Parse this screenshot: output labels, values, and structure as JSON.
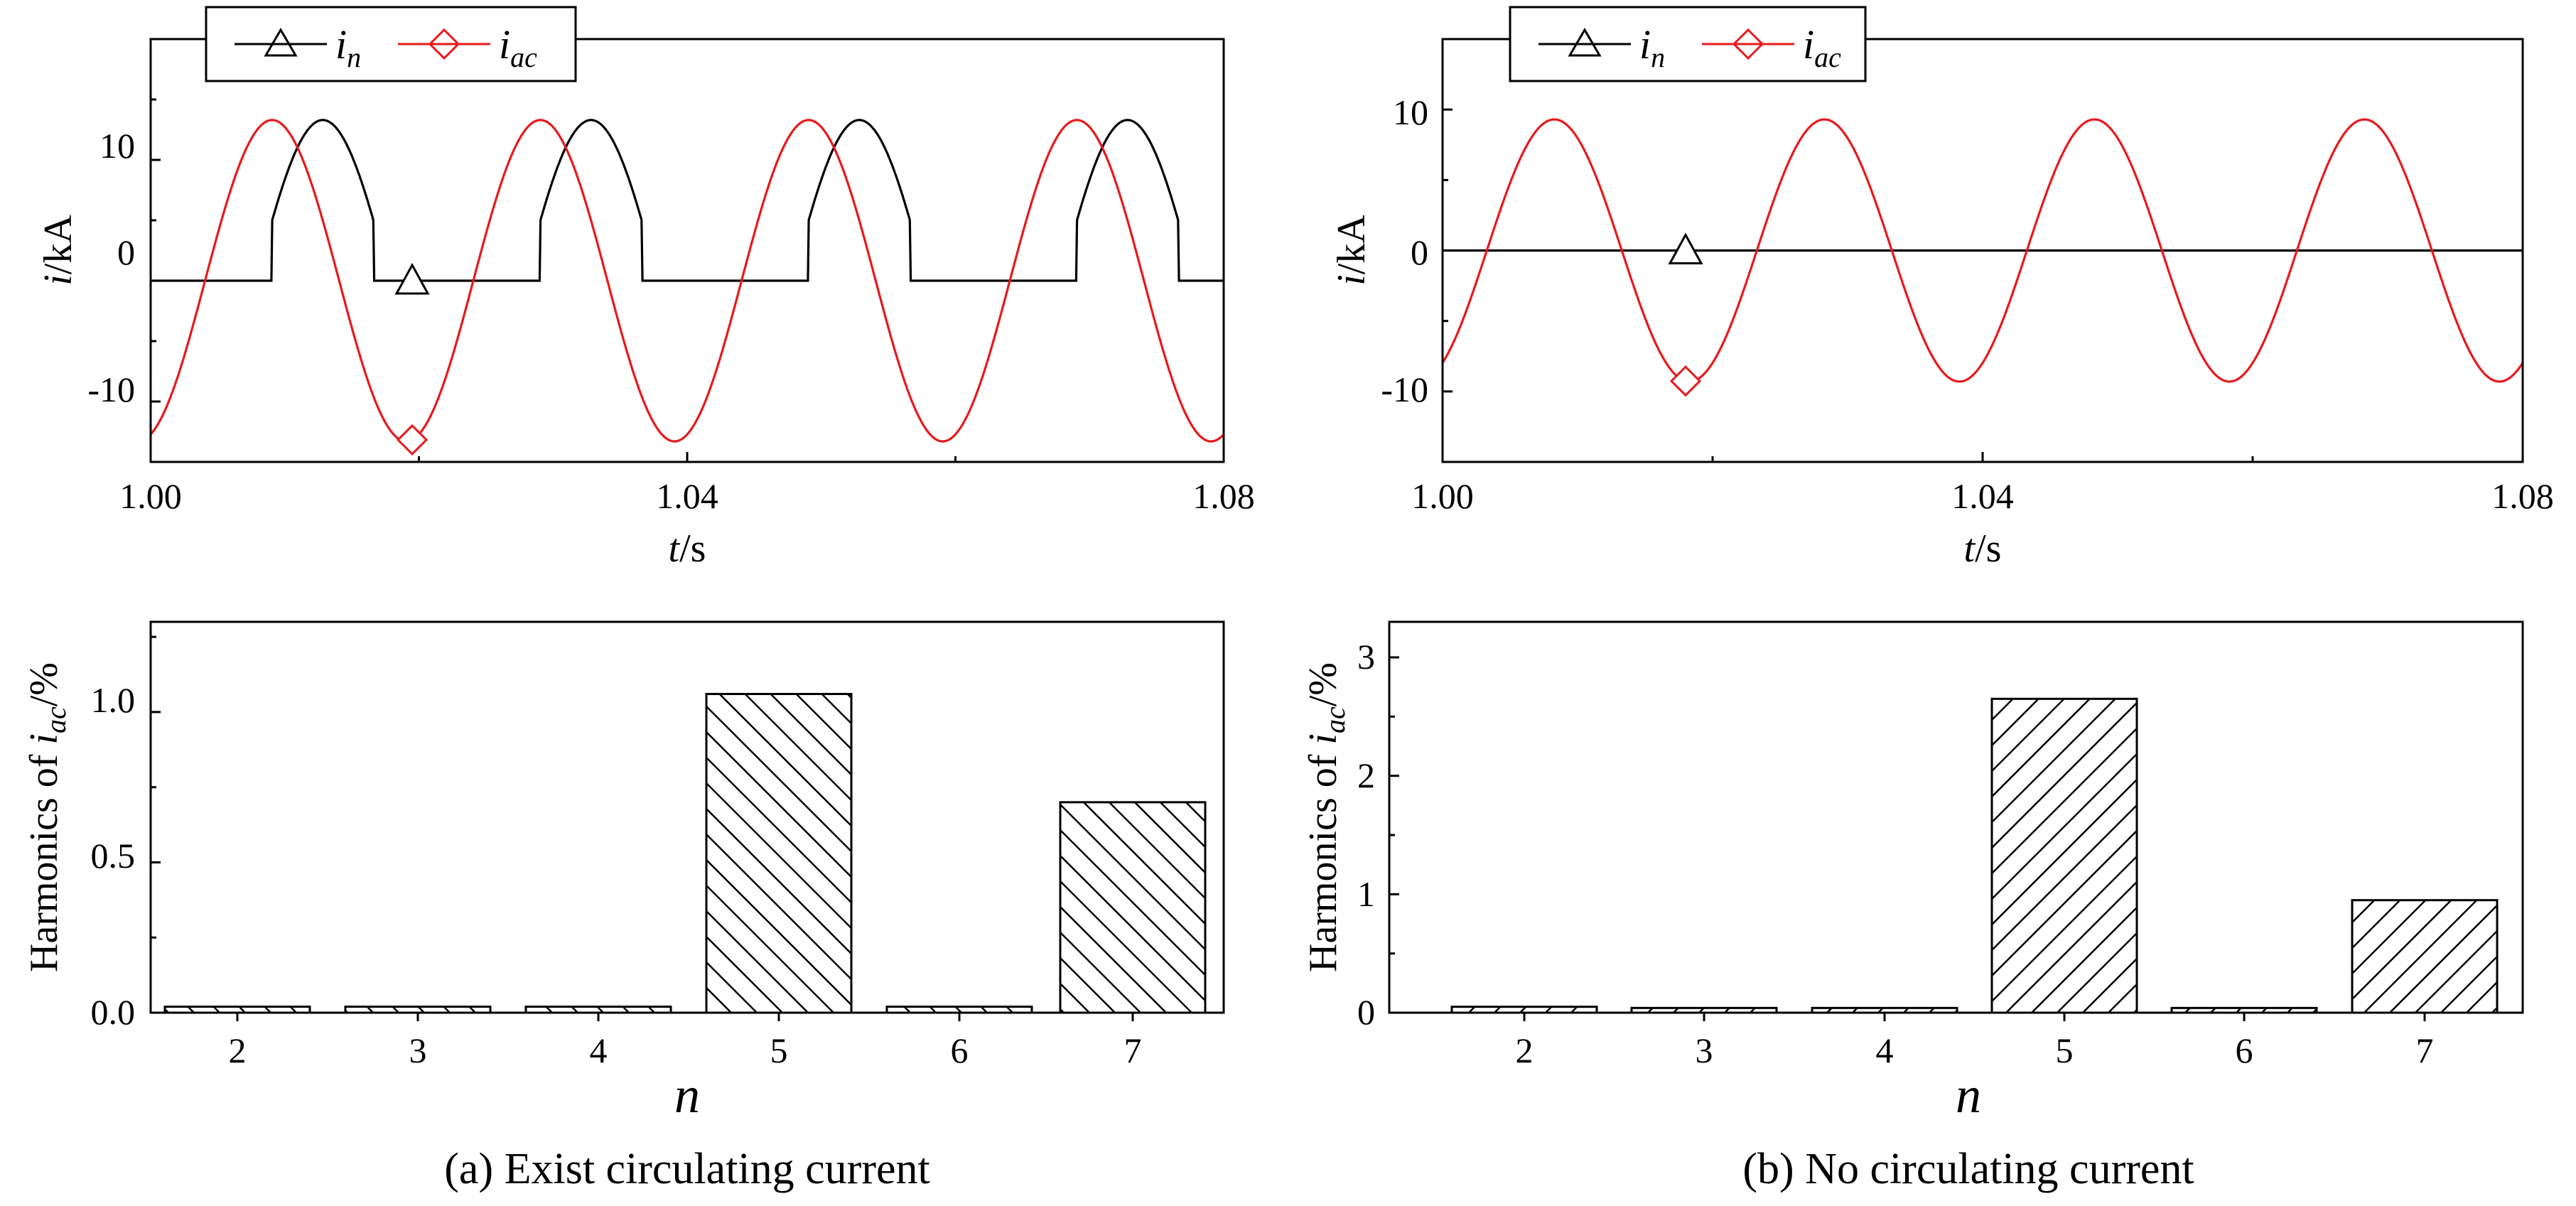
{
  "colors": {
    "in": "#000000",
    "iac": "#e8191c",
    "axis": "#000000",
    "background": "#ffffff"
  },
  "chart_data": [
    {
      "id": "a-time",
      "type": "line",
      "panel": "a",
      "xlabel": {
        "italic": "t",
        "rest": "/s"
      },
      "ylabel": {
        "italic": "i",
        "rest": "/kA"
      },
      "xlim": [
        1.0,
        1.08
      ],
      "ylim": [
        -15,
        20
      ],
      "xticks": [
        1.0,
        1.04,
        1.08
      ],
      "xtick_labels": [
        "1.00",
        "1.04",
        "1.08"
      ],
      "yticks": [
        -10,
        0,
        10
      ],
      "ytick_labels": [
        "-10",
        "0",
        "10"
      ],
      "legend": {
        "placement": "top-left",
        "in": {
          "main": "i",
          "sub": "n",
          "marker": "triangle"
        },
        "iac": {
          "main": "i",
          "sub": "ac",
          "marker": "diamond"
        }
      },
      "series": [
        {
          "name": "i_n",
          "color": "#000000",
          "marker": "triangle",
          "marker_x": 1.0195,
          "kind": "rectified",
          "amplitude": 13.3,
          "frequency": 50,
          "phase_deg": -141,
          "threshold": 5.0
        },
        {
          "name": "i_ac",
          "color": "#e8191c",
          "marker": "diamond",
          "marker_x": 1.0195,
          "kind": "sine",
          "amplitude": 13.3,
          "frequency": 50,
          "phase_deg": -73,
          "threshold": 0
        }
      ]
    },
    {
      "id": "b-time",
      "type": "line",
      "panel": "b",
      "xlabel": {
        "italic": "t",
        "rest": "/s"
      },
      "ylabel": {
        "italic": "i",
        "rest": "/kA"
      },
      "xlim": [
        1.0,
        1.08
      ],
      "ylim": [
        -15,
        15
      ],
      "xticks": [
        1.0,
        1.04,
        1.08
      ],
      "xtick_labels": [
        "1.00",
        "1.04",
        "1.08"
      ],
      "yticks": [
        -10,
        0,
        10
      ],
      "ytick_labels": [
        "-10",
        "0",
        "10"
      ],
      "legend": {
        "placement": "top-left",
        "in": {
          "main": "i",
          "sub": "n",
          "marker": "triangle"
        },
        "iac": {
          "main": "i",
          "sub": "ac",
          "marker": "diamond"
        }
      },
      "series": [
        {
          "name": "i_n",
          "color": "#000000",
          "marker": "triangle",
          "marker_x": 1.018,
          "kind": "zero",
          "amplitude": 0,
          "frequency": 50,
          "phase_deg": 0,
          "threshold": 0
        },
        {
          "name": "i_ac",
          "color": "#e8191c",
          "marker": "diamond",
          "marker_x": 1.018,
          "kind": "sine",
          "amplitude": 9.3,
          "frequency": 50,
          "phase_deg": -59,
          "threshold": 0
        }
      ]
    },
    {
      "id": "a-harm",
      "type": "bar",
      "panel": "a",
      "title": "(a) Exist circulating current",
      "xlabel": "n",
      "ylabel": {
        "main": "Harmonics of ",
        "italic": "i",
        "sub": "ac",
        "rest": "/%"
      },
      "categories": [
        "2",
        "3",
        "4",
        "5",
        "6",
        "7"
      ],
      "values": [
        0.02,
        0.02,
        0.02,
        1.06,
        0.02,
        0.7
      ],
      "hatch": "back-diagonal",
      "ylim": [
        0,
        1.3
      ],
      "yticks": [
        0,
        0.5,
        1.0
      ],
      "ytick_labels": [
        "0.0",
        "0.5",
        "1.0"
      ]
    },
    {
      "id": "b-harm",
      "type": "bar",
      "panel": "b",
      "title": "(b) No circulating current",
      "xlabel": "n",
      "ylabel": {
        "main": "Harmonics of ",
        "italic": "i",
        "sub": "ac",
        "rest": "/%"
      },
      "categories": [
        "2",
        "3",
        "4",
        "5",
        "6",
        "7"
      ],
      "values": [
        0.05,
        0.04,
        0.04,
        2.65,
        0.04,
        0.95
      ],
      "hatch": "forward-diagonal",
      "ylim": [
        0,
        3.3
      ],
      "yticks": [
        0,
        1,
        2,
        3
      ],
      "ytick_labels": [
        "0",
        "1",
        "2",
        "3"
      ]
    }
  ]
}
